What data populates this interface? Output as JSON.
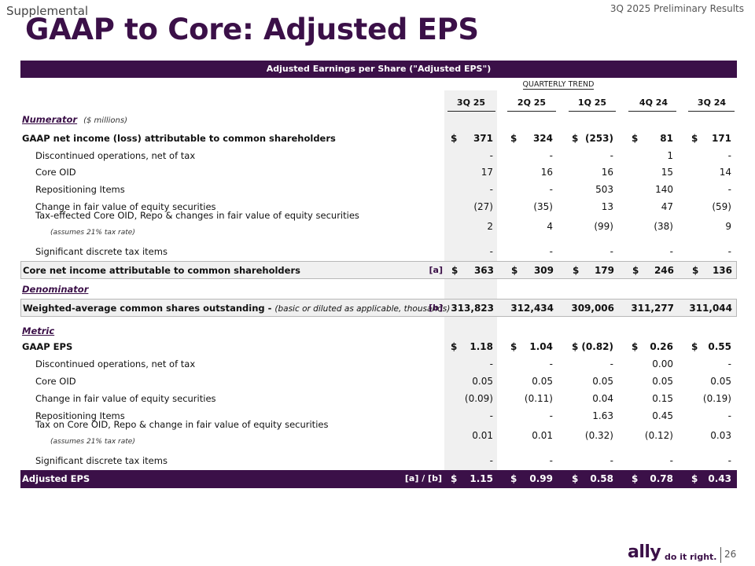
{
  "header": {
    "supplemental": "Supplemental",
    "preliminary": "3Q 2025 Preliminary Results",
    "title": "GAAP to Core: Adjusted EPS"
  },
  "table": {
    "banner": "Adjusted Earnings per Share (\"Adjusted EPS\")",
    "trend_label": "QUARTERLY TREND",
    "columns": [
      "3Q 25",
      "2Q 25",
      "1Q 25",
      "4Q 24",
      "3Q 24"
    ],
    "currency_symbol": "$",
    "numerator_title": "Numerator",
    "numerator_note": "($ millions)",
    "denominator_title": "Denominator",
    "metric_title": "Metric",
    "rows": [
      {
        "label": "GAAP net income (loss) attributable to common shareholders",
        "values": [
          "371",
          "324",
          "(253)",
          "81",
          "171"
        ]
      },
      {
        "label": "Discontinued operations, net of tax",
        "values": [
          "-",
          "-",
          "-",
          "1",
          "-"
        ]
      },
      {
        "label": "Core OID",
        "values": [
          "17",
          "16",
          "16",
          "15",
          "14"
        ]
      },
      {
        "label": "Repositioning Items",
        "values": [
          "-",
          "-",
          "503",
          "140",
          "-"
        ]
      },
      {
        "label": "Change in fair value of equity securities",
        "values": [
          "(27)",
          "(35)",
          "13",
          "47",
          "(59)"
        ]
      },
      {
        "label": "Tax-effected Core OID, Repo & changes in fair value of equity securities",
        "sub": "(assumes 21% tax rate)",
        "values": [
          "2",
          "4",
          "(99)",
          "(38)",
          "9"
        ]
      },
      {
        "label": "Significant discrete tax items",
        "values": [
          "-",
          "-",
          "-",
          "-",
          "-"
        ]
      },
      {
        "label": "Core net income attributable to common shareholders",
        "tag": "[a]",
        "values": [
          "363",
          "309",
          "179",
          "246",
          "136"
        ]
      },
      {
        "label": "Weighted-average common shares outstanding -",
        "note": "(basic or diluted as applicable, thousands)",
        "tag": "[b]",
        "values": [
          "313,823",
          "312,434",
          "309,006",
          "311,277",
          "311,044"
        ]
      },
      {
        "label": "GAAP EPS",
        "values": [
          "1.18",
          "1.04",
          "(0.82)",
          "0.26",
          "0.55"
        ]
      },
      {
        "label": "Discontinued operations, net of tax",
        "values": [
          "-",
          "-",
          "-",
          "0.00",
          "-"
        ]
      },
      {
        "label": "Core OID",
        "values": [
          "0.05",
          "0.05",
          "0.05",
          "0.05",
          "0.05"
        ]
      },
      {
        "label": "Change in fair value of equity securities",
        "values": [
          "(0.09)",
          "(0.11)",
          "0.04",
          "0.15",
          "(0.19)"
        ]
      },
      {
        "label": "Repositioning Items",
        "values": [
          "-",
          "-",
          "1.63",
          "0.45",
          "-"
        ]
      },
      {
        "label": "Tax on Core OID, Repo & change in fair value of equity securities",
        "sub": "(assumes 21% tax rate)",
        "values": [
          "0.01",
          "0.01",
          "(0.32)",
          "(0.12)",
          "0.03"
        ]
      },
      {
        "label": "Significant discrete tax items",
        "values": [
          "-",
          "-",
          "-",
          "-",
          "-"
        ]
      },
      {
        "label": "Adjusted EPS",
        "tag": "[a] / [b]",
        "values": [
          "1.15",
          "0.99",
          "0.58",
          "0.78",
          "0.43"
        ]
      }
    ]
  },
  "footer": {
    "logo": "ally",
    "slogan": "do it right.",
    "page_number": "26"
  },
  "colors": {
    "brand_purple": "#3b1048",
    "shade": "#f0f0f0"
  }
}
